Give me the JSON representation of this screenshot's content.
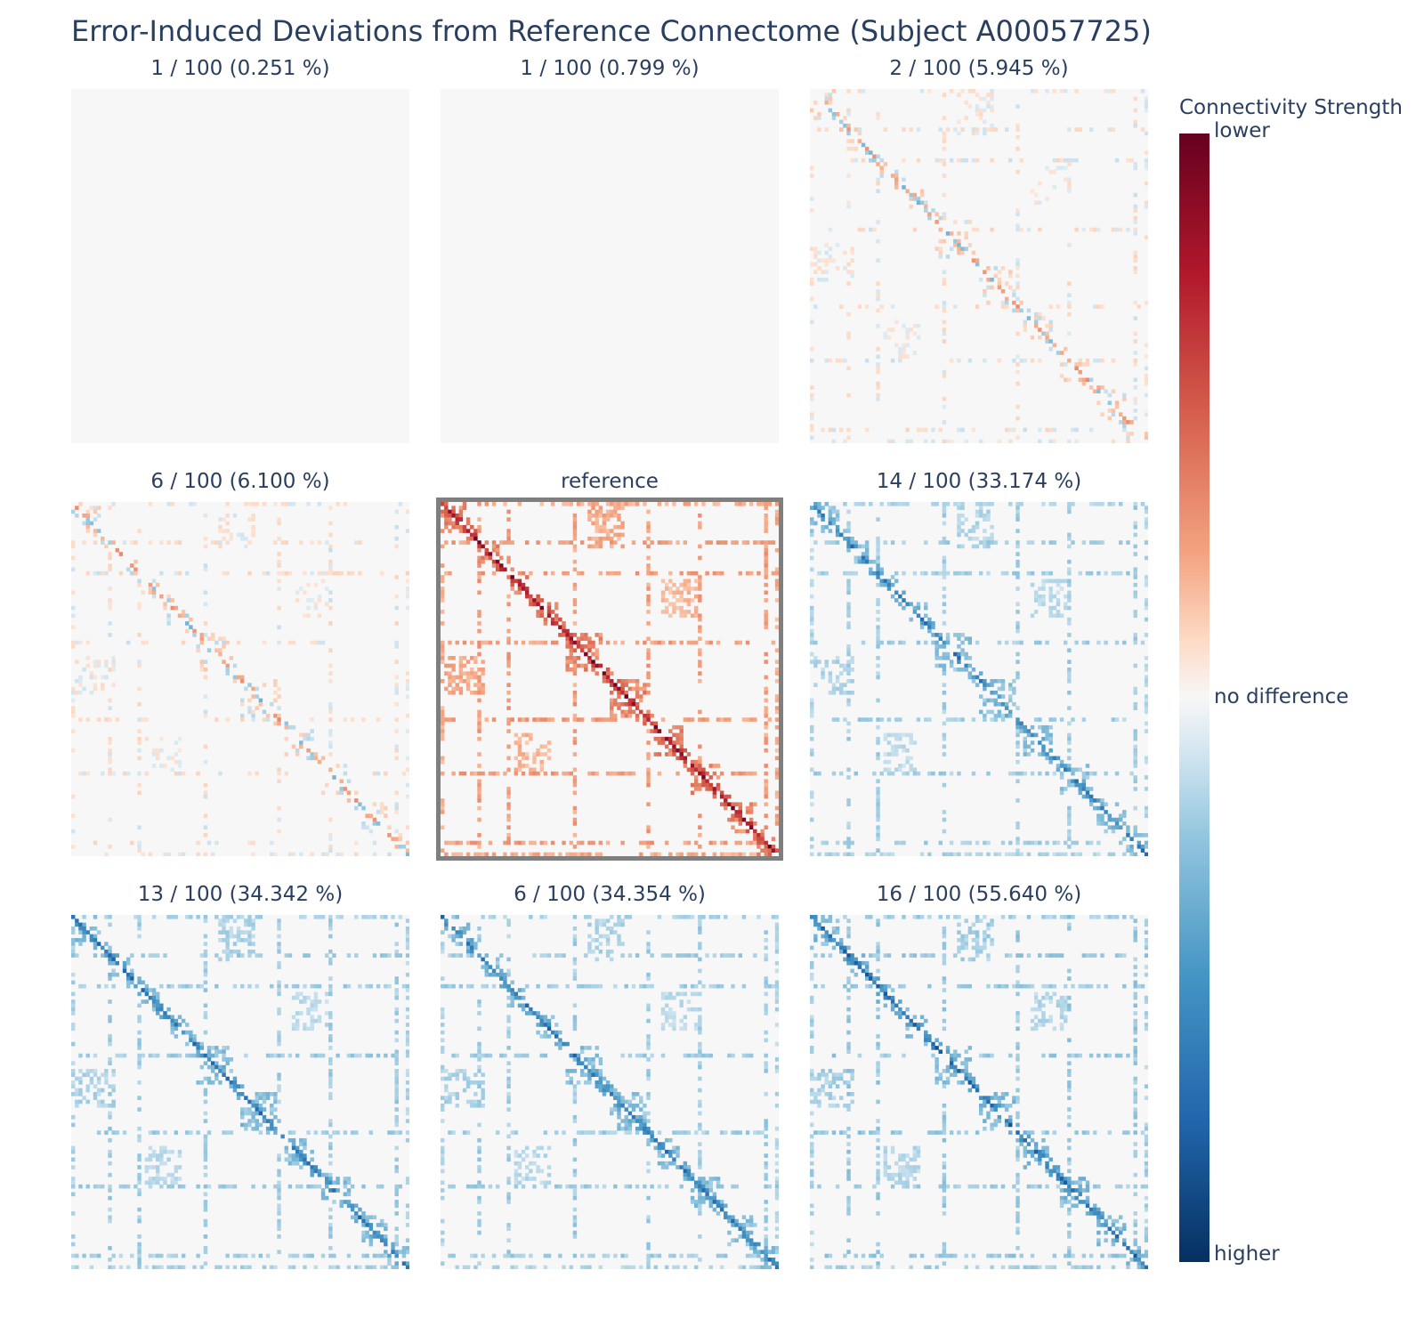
{
  "chart_data": {
    "type": "heatmap",
    "title": "Error-Induced Deviations from Reference Connectome (Subject A00057725)",
    "panels": [
      {
        "title": "1 / 100 (0.251 %)",
        "highlighted": false,
        "sign": 1,
        "intensity": 0.05,
        "density": 0.03
      },
      {
        "title": "1 / 100 (0.799 %)",
        "highlighted": false,
        "sign": 1,
        "intensity": 0.07,
        "density": 0.04
      },
      {
        "title": "2 / 100 (5.945 %)",
        "highlighted": false,
        "sign": 0,
        "intensity": 0.35,
        "density": 0.5
      },
      {
        "title": "6 / 100 (6.100 %)",
        "highlighted": false,
        "sign": 0,
        "intensity": 0.36,
        "density": 0.52
      },
      {
        "title": "reference",
        "highlighted": true,
        "sign": 1,
        "intensity": 1.0,
        "density": 0.9
      },
      {
        "title": "14 / 100 (33.174 %)",
        "highlighted": false,
        "sign": -1,
        "intensity": 0.75,
        "density": 0.8
      },
      {
        "title": "13 / 100 (34.342 %)",
        "highlighted": false,
        "sign": -1,
        "intensity": 0.78,
        "density": 0.82
      },
      {
        "title": "6 / 100 (34.354 %)",
        "highlighted": false,
        "sign": -1,
        "intensity": 0.78,
        "density": 0.82
      },
      {
        "title": "16 / 100 (55.640 %)",
        "highlighted": false,
        "sign": -1,
        "intensity": 0.85,
        "density": 0.85
      }
    ],
    "colorbar": {
      "title": "Connectivity Strength",
      "tick_top": "lower",
      "tick_middle": "no difference",
      "tick_bottom": "higher",
      "colorscale": [
        "#67001f",
        "#b2182b",
        "#d6604d",
        "#f4a582",
        "#fddbc7",
        "#f7f7f7",
        "#d1e5f0",
        "#92c5de",
        "#4393c3",
        "#2166ac",
        "#053061"
      ]
    }
  }
}
